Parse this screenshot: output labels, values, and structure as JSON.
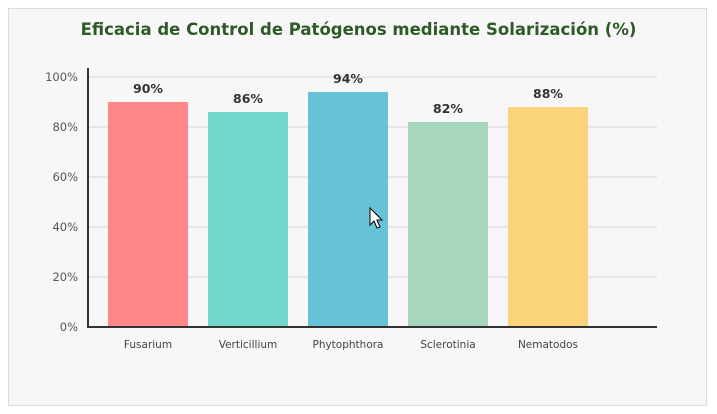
{
  "chart_data": {
    "type": "bar",
    "title": "Eficacia de Control de Patógenos mediante Solarización (%)",
    "categories": [
      "Fusarium",
      "Verticillium",
      "Phytophthora",
      "Sclerotinia",
      "Nematodos"
    ],
    "values": [
      90,
      86,
      94,
      82,
      88
    ],
    "data_labels": [
      "90%",
      "86%",
      "94%",
      "82%",
      "88%"
    ],
    "colors": [
      "#ff8787",
      "#73d6cf",
      "#67c2d8",
      "#a8d5be",
      "#fbd37a"
    ],
    "ylim": [
      0,
      100
    ],
    "yticks": [
      0,
      20,
      40,
      60,
      80,
      100
    ],
    "ytick_labels": [
      "0%",
      "20%",
      "40%",
      "60%",
      "80%",
      "100%"
    ],
    "xlabel": "",
    "ylabel": "",
    "grid": true,
    "title_color": "#2e5a27"
  }
}
